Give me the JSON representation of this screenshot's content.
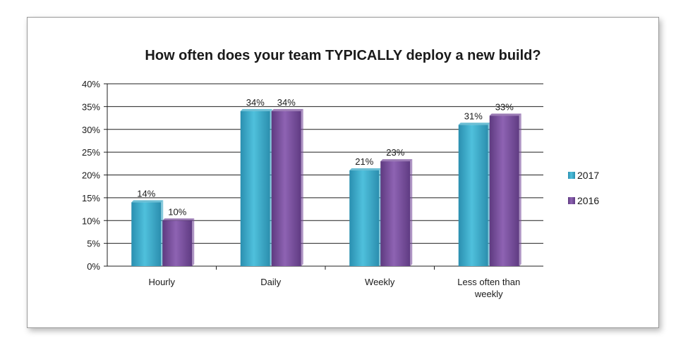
{
  "chart_data": {
    "type": "bar",
    "title": "How often does your team TYPICALLY deploy a new build?",
    "categories": [
      "Hourly",
      "Daily",
      "Weekly",
      "Less often than weekly"
    ],
    "series": [
      {
        "name": "2017",
        "values": [
          14,
          34,
          21,
          31
        ],
        "labels": [
          "14%",
          "34%",
          "21%",
          "31%"
        ],
        "color": "#3aa8c6"
      },
      {
        "name": "2016",
        "values": [
          10,
          34,
          23,
          33
        ],
        "labels": [
          "10%",
          "34%",
          "23%",
          "33%"
        ],
        "color": "#7a4f9c"
      }
    ],
    "ylim": [
      0,
      40
    ],
    "yticks": [
      "0%",
      "5%",
      "10%",
      "15%",
      "20%",
      "25%",
      "30%",
      "35%",
      "40%"
    ],
    "grid": true,
    "legend": "right"
  }
}
